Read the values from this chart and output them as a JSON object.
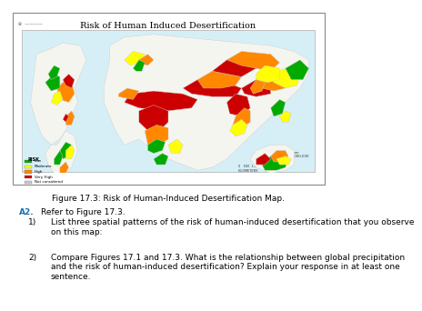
{
  "title": "Risk of Human Induced Desertification",
  "page_bg": "#ffffff",
  "map_bg": "#d6eff7",
  "map_border_color": "#aaaaaa",
  "legend_title": "RISK",
  "legend_items": [
    {
      "label": "Low",
      "color": "#00aa00"
    },
    {
      "label": "Moderate",
      "color": "#ffff00"
    },
    {
      "label": "High",
      "color": "#ff8800"
    },
    {
      "label": "Very High",
      "color": "#cc0000"
    },
    {
      "label": "Not considered",
      "color": "#c8c8c8"
    }
  ],
  "figure_caption": "Figure 17.3: Risk of Human-Induced Desertification Map.",
  "question_label": "A2.",
  "question_text": "Refer to Figure 17.3.",
  "q1_label": "1)",
  "q1_text": "List three spatial patterns of the risk of human-induced desertification that you observe\non this map:",
  "q2_label": "2)",
  "q2_text": "Compare Figures 17.1 and 17.3. What is the relationship between global precipitation\nand the risk of human-induced desertification? Explain your response in at least one\nsentence.",
  "title_fontsize": 7,
  "caption_fontsize": 6.5,
  "body_fontsize": 6.5,
  "label_color_blue": "#1a6faf"
}
